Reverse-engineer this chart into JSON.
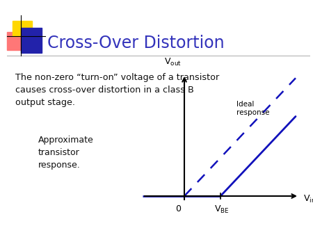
{
  "title": "Cross-Over Distortion",
  "title_color": "#3333BB",
  "body_text": "The non-zero “turn-on” voltage of a transistor\ncauses cross-over distortion in a class B\noutput stage.",
  "annotation_text": "Approximate\ntransistor\nresponse.",
  "ideal_label": "Ideal\nresponse",
  "line_color": "#1111BB",
  "background_color": "#FFFFFF",
  "logo_yellow": "#FFD700",
  "logo_red": "#FF7777",
  "logo_blue": "#2222AA",
  "separator_color": "#AAAAAA",
  "text_color": "#111111"
}
